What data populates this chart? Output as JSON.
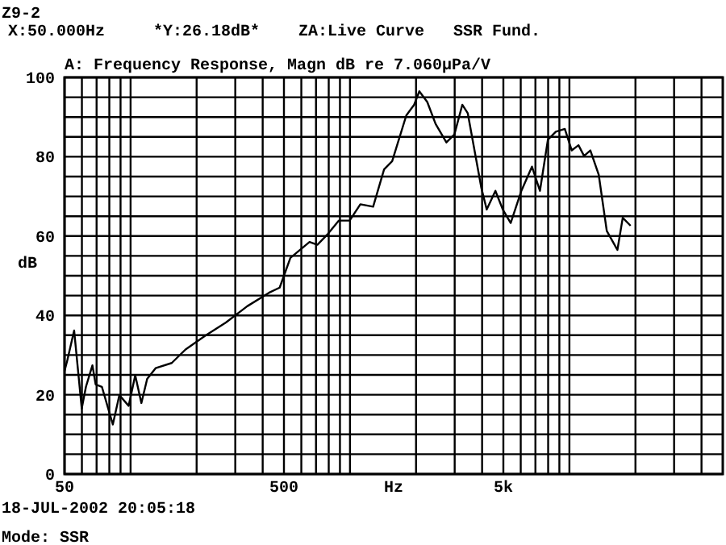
{
  "chart_data": {
    "type": "line",
    "title": "A: Frequency Response, Magn dB re 7.060μPa/V",
    "subtitle": "X:50.000Hz     *Y:26.18dB*    ZA:Live Curve   SSR Fund.",
    "xlabel": "Hz",
    "ylabel": "dB",
    "annotations": [
      "Z9-2",
      "18-JUL-2002 20:05:18",
      "Mode: SSR"
    ],
    "log": "x",
    "grid": true,
    "xlim": [
      50,
      50000
    ],
    "ylim": [
      0,
      100
    ],
    "xticks": [
      50,
      {
        "value": 60,
        "label": null
      },
      {
        "value": 70,
        "label": null
      },
      {
        "value": 80,
        "label": null
      },
      {
        "value": 90,
        "label": null
      },
      {
        "value": 100,
        "label": null
      },
      {
        "value": 200,
        "label": null
      },
      {
        "value": 300,
        "label": null
      },
      {
        "value": 400,
        "label": null
      },
      500,
      {
        "value": 600,
        "label": null
      },
      {
        "value": 700,
        "label": null
      },
      {
        "value": 800,
        "label": null
      },
      {
        "value": 900,
        "label": null
      },
      {
        "value": 1000,
        "label": null
      },
      {
        "value": 2000,
        "label": null
      },
      {
        "value": 3000,
        "label": null
      },
      {
        "value": 4000,
        "label": null
      },
      {
        "value": 5000,
        "label": "5k"
      },
      {
        "value": 6000,
        "label": null
      },
      {
        "value": 7000,
        "label": null
      },
      {
        "value": 8000,
        "label": null
      },
      {
        "value": 9000,
        "label": null
      },
      {
        "value": 10000,
        "label": null
      },
      {
        "value": 20000,
        "label": null
      },
      {
        "value": 30000,
        "label": null
      },
      {
        "value": 40000,
        "label": null
      }
    ],
    "yticks": [
      0,
      {
        "value": 5,
        "label": null
      },
      {
        "value": 10,
        "label": null
      },
      {
        "value": 15,
        "label": null
      },
      20,
      {
        "value": 25,
        "label": null
      },
      {
        "value": 30,
        "label": null
      },
      {
        "value": 35,
        "label": null
      },
      40,
      {
        "value": 45,
        "label": null
      },
      {
        "value": 50,
        "label": null
      },
      {
        "value": 55,
        "label": null
      },
      60,
      {
        "value": 65,
        "label": null
      },
      {
        "value": 70,
        "label": null
      },
      {
        "value": 75,
        "label": null
      },
      80,
      {
        "value": 85,
        "label": null
      },
      {
        "value": 90,
        "label": null
      },
      {
        "value": 95,
        "label": null
      },
      100
    ],
    "series": [
      {
        "color": "#000000",
        "x": [
          50,
          51.5,
          55.3,
          59.9,
          62.6,
          67,
          69.3,
          74,
          83,
          88.9,
          98,
          105,
          112,
          119,
          130,
          154,
          178,
          218,
          272,
          340,
          427,
          478,
          535,
          654,
          710,
          795,
          890,
          996,
          1115,
          1275,
          1430,
          1557,
          1805,
          1960,
          2070,
          2250,
          2455,
          2750,
          2990,
          3250,
          3440,
          3970,
          4200,
          4600,
          4970,
          5400,
          6040,
          6750,
          7340,
          7980,
          8670,
          9530,
          10250,
          11000,
          11660,
          12460,
          13600,
          14800,
          16550,
          17500,
          19000
        ],
        "values": [
          26,
          28.7,
          36.2,
          16.5,
          22,
          27.4,
          22.6,
          22,
          12.5,
          19.9,
          17.2,
          24.9,
          17.9,
          24,
          26.7,
          28,
          31.4,
          34.8,
          38.2,
          42.3,
          45.7,
          47,
          54.5,
          58.5,
          57.8,
          60.6,
          63.9,
          63.9,
          68,
          67.4,
          76.8,
          78.9,
          90.4,
          93.1,
          96.5,
          93.8,
          88.3,
          83.6,
          85.6,
          93.1,
          91,
          72.1,
          66.7,
          71.4,
          66.7,
          63.3,
          71.4,
          77.5,
          71.4,
          84.3,
          86.3,
          87,
          81.6,
          82.9,
          80.2,
          81.6,
          75.5,
          61.3,
          56.5,
          64.6,
          62.6
        ]
      }
    ]
  }
}
